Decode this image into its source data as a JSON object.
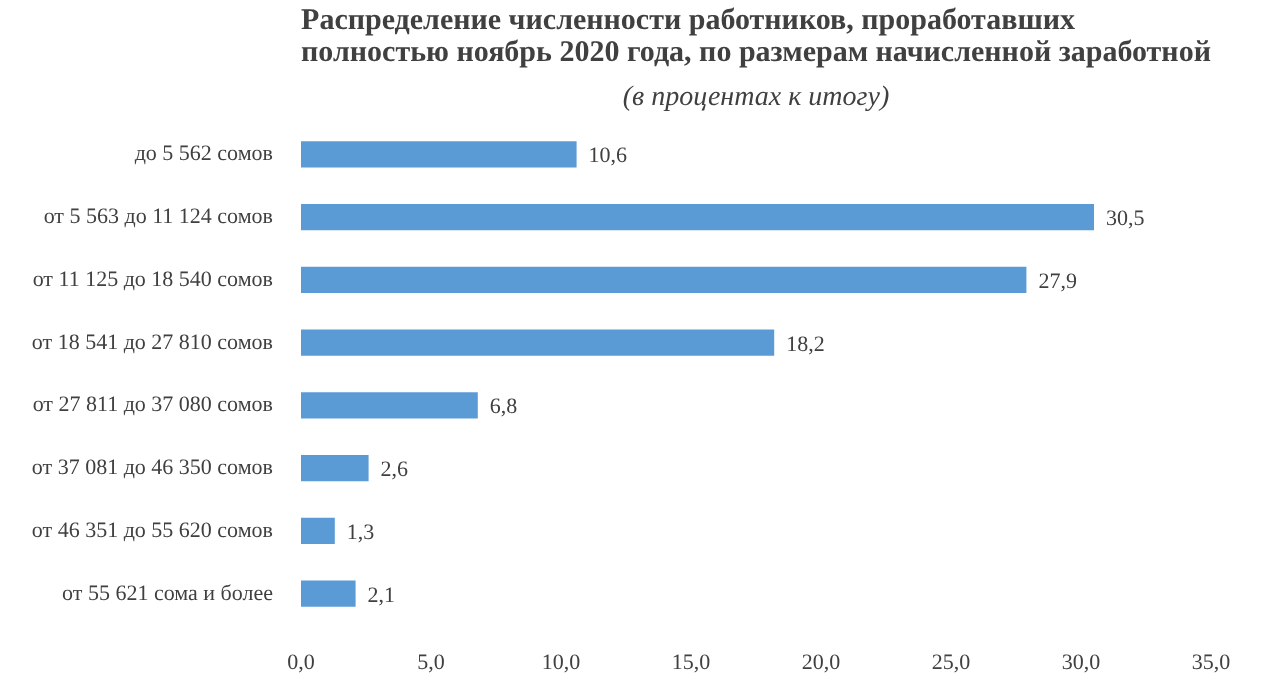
{
  "chart_data": {
    "type": "bar",
    "orientation": "horizontal",
    "title": "Распределение численности работников, проработавших полностью ноябрь 2020 года, по размерам начисленной заработной",
    "subtitle": "(в процентах к итогу)",
    "categories": [
      "до 5 562 сомов",
      "от 5 563 до 11 124 сомов",
      "от 11 125 до 18 540 сомов",
      "от 18 541 до 27 810 сомов",
      "от 27 811 до 37 080 сомов",
      "от 37 081 до 46 350 сомов",
      "от 46 351 до 55 620 сомов",
      "от 55 621 сома и более"
    ],
    "values": [
      10.6,
      30.5,
      27.9,
      18.2,
      6.8,
      2.6,
      1.3,
      2.1
    ],
    "value_labels": [
      "10,6",
      "30,5",
      "27,9",
      "18,2",
      "6,8",
      "2,6",
      "1,3",
      "2,1"
    ],
    "color": "#5b9bd5",
    "xlim": [
      0,
      35
    ],
    "xticks": [
      {
        "value": 0,
        "label": "0,0"
      },
      {
        "value": 5,
        "label": "5,0"
      },
      {
        "value": 10,
        "label": "10,0"
      },
      {
        "value": 15,
        "label": "15,0"
      },
      {
        "value": 20,
        "label": "20,0"
      },
      {
        "value": 25,
        "label": "25,0"
      },
      {
        "value": 30,
        "label": "30,0"
      },
      {
        "value": 35,
        "label": "35,0"
      }
    ],
    "grid": false
  }
}
